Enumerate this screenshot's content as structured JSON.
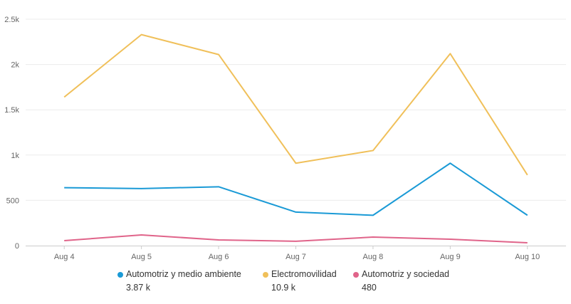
{
  "chart_data": {
    "type": "line",
    "title": "",
    "xlabel": "",
    "ylabel": "",
    "categories": [
      "Aug 4",
      "Aug 5",
      "Aug 6",
      "Aug 7",
      "Aug 8",
      "Aug 9",
      "Aug 10"
    ],
    "ylim": [
      0,
      2500
    ],
    "yticks": [
      0,
      500,
      1000,
      1500,
      2000,
      2500
    ],
    "ytick_labels": [
      "0",
      "500",
      "1k",
      "1.5k",
      "2k",
      "2.5k"
    ],
    "grid": true,
    "legend_placement": "bottom",
    "series": [
      {
        "name": "Automotriz y medio ambiente",
        "total": "3.87 k",
        "color": "#1a9ad6",
        "values": [
          640,
          630,
          650,
          370,
          335,
          910,
          335
        ]
      },
      {
        "name": "Electromovilidad",
        "total": "10.9 k",
        "color": "#f0c05a",
        "values": [
          1640,
          2330,
          2110,
          910,
          1050,
          2120,
          780
        ]
      },
      {
        "name": "Automotriz y sociedad",
        "total": "480",
        "color": "#e0648a",
        "values": [
          55,
          118,
          63,
          48,
          94,
          71,
          31
        ]
      }
    ]
  }
}
